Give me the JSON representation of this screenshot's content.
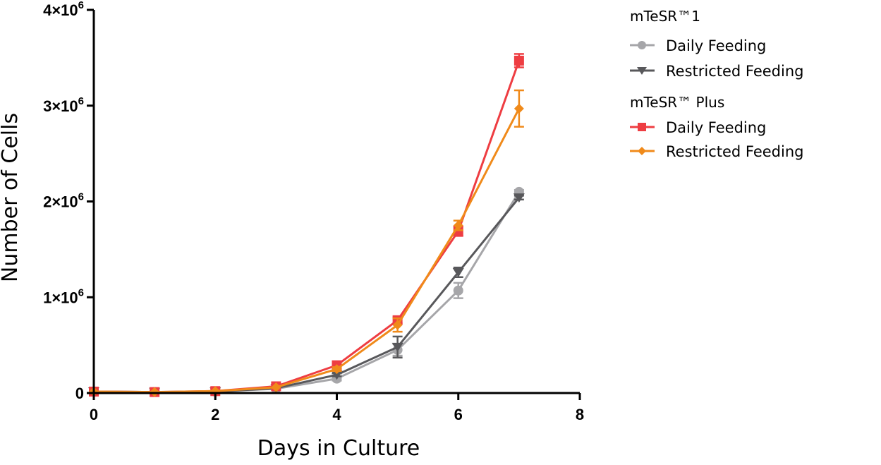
{
  "chart_data": {
    "type": "line",
    "xlabel": "Days in Culture",
    "ylabel": "Number of Cells",
    "xlim": [
      0,
      8
    ],
    "ylim": [
      0,
      4000000
    ],
    "x_ticks": [
      "0",
      "2",
      "4",
      "6",
      "8"
    ],
    "y_ticks": [
      {
        "value": 0,
        "mantissa": "0",
        "exponent": ""
      },
      {
        "value": 1000000,
        "mantissa": "1×10",
        "exponent": "6"
      },
      {
        "value": 2000000,
        "mantissa": "2×10",
        "exponent": "6"
      },
      {
        "value": 3000000,
        "mantissa": "3×10",
        "exponent": "6"
      },
      {
        "value": 4000000,
        "mantissa": "4×10",
        "exponent": "6"
      }
    ],
    "grid": false,
    "legend_position": "right",
    "legend_groups": [
      {
        "title": "mTeSR™1",
        "series_indices": [
          0,
          1
        ]
      },
      {
        "title": "mTeSR™ Plus",
        "series_indices": [
          2,
          3
        ]
      }
    ],
    "series": [
      {
        "name": "Daily Feeding",
        "group": "mTeSR™1",
        "color": "#a6a6a9",
        "marker": "circle",
        "x": [
          0,
          1,
          2,
          3,
          4,
          5,
          6,
          7
        ],
        "y": [
          15000,
          10000,
          15000,
          45000,
          150000,
          450000,
          1070000,
          2100000
        ],
        "error": [
          0,
          0,
          0,
          0,
          20000,
          60000,
          80000,
          20000
        ]
      },
      {
        "name": "Restricted Feeding",
        "group": "mTeSR™1",
        "color": "#58585b",
        "marker": "triangle-down",
        "x": [
          0,
          1,
          2,
          3,
          4,
          5,
          6,
          7
        ],
        "y": [
          15000,
          10000,
          15000,
          50000,
          190000,
          480000,
          1260000,
          2040000
        ],
        "error": [
          0,
          0,
          0,
          0,
          15000,
          110000,
          50000,
          20000
        ]
      },
      {
        "name": "Daily Feeding",
        "group": "mTeSR™ Plus",
        "color": "#ee3d42",
        "marker": "square",
        "x": [
          0,
          1,
          2,
          3,
          4,
          5,
          6,
          7
        ],
        "y": [
          15000,
          10000,
          20000,
          70000,
          290000,
          760000,
          1690000,
          3470000
        ],
        "error": [
          0,
          0,
          0,
          0,
          20000,
          30000,
          50000,
          70000
        ]
      },
      {
        "name": "Restricted Feeding",
        "group": "mTeSR™ Plus",
        "color": "#f08a1a",
        "marker": "diamond",
        "x": [
          0,
          1,
          2,
          3,
          4,
          5,
          6,
          7
        ],
        "y": [
          15000,
          10000,
          20000,
          60000,
          250000,
          710000,
          1750000,
          2970000
        ],
        "error": [
          0,
          0,
          0,
          0,
          20000,
          70000,
          50000,
          190000
        ]
      }
    ]
  }
}
